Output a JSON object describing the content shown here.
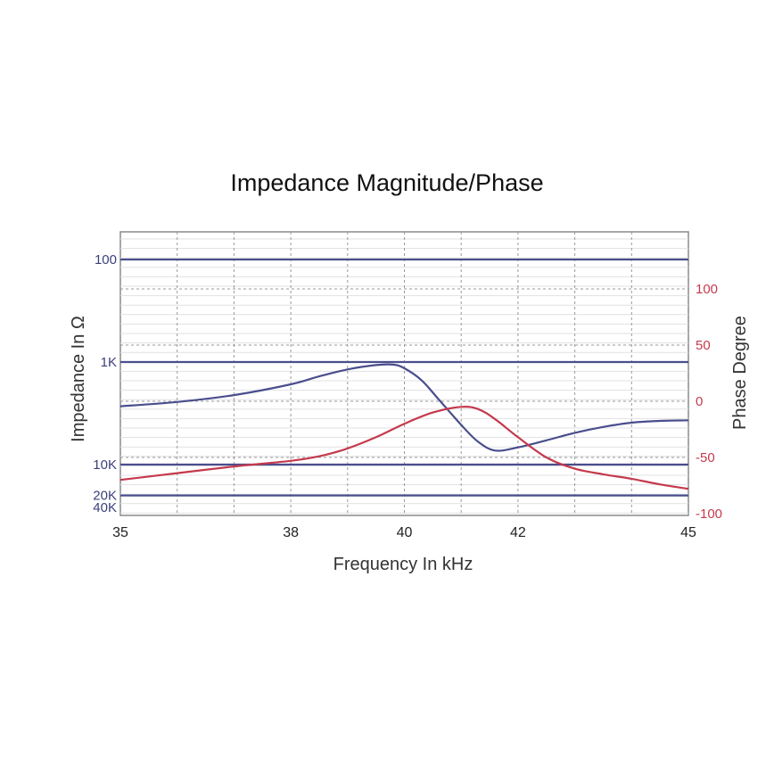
{
  "chart_data": {
    "type": "line",
    "title": "Impedance Magnitude/Phase",
    "xlabel": "Frequency In kHz",
    "ylabel_left": "Impedance In Ω",
    "ylabel_right": "Phase Degree",
    "xlim": [
      35,
      45
    ],
    "x_ticks": [
      35,
      38,
      40,
      42,
      45
    ],
    "y_left_ticks": [
      {
        "value": 100,
        "label": "100"
      },
      {
        "value": 1000,
        "label": "1K"
      },
      {
        "value": 10000,
        "label": "10K"
      },
      {
        "value": 20000,
        "label": "20K"
      },
      {
        "value": 40000,
        "label": "40K"
      }
    ],
    "y_left_scale": "log-inverted",
    "y_right_ticks": [
      100,
      50,
      0,
      -50,
      -100
    ],
    "y_right_lim": [
      -100,
      100
    ],
    "grid": true,
    "colors": {
      "impedance": "#4a4e8c",
      "phase": "#c43a4d"
    },
    "series": [
      {
        "axis": "left",
        "x": [
          35,
          36,
          37,
          38,
          38.5,
          39,
          39.5,
          39.8,
          40,
          40.3,
          40.6,
          41,
          41.3,
          41.6,
          42,
          42.5,
          43,
          43.5,
          44,
          44.5,
          45
        ],
        "values": [
          2700,
          2450,
          2100,
          1650,
          1380,
          1180,
          1070,
          1060,
          1150,
          1500,
          2300,
          4100,
          6000,
          7300,
          6800,
          5800,
          4900,
          4300,
          3900,
          3750,
          3700
        ]
      },
      {
        "axis": "right",
        "x": [
          35,
          36,
          37,
          38,
          38.5,
          39,
          39.5,
          40,
          40.5,
          41,
          41.3,
          41.6,
          42,
          42.5,
          43,
          43.5,
          44,
          44.5,
          45
        ],
        "values": [
          -70,
          -64,
          -58,
          -53,
          -49,
          -42,
          -32,
          -20,
          -10,
          -5,
          -7,
          -16,
          -32,
          -50,
          -60,
          -65,
          -69,
          -74,
          -78
        ]
      }
    ]
  }
}
